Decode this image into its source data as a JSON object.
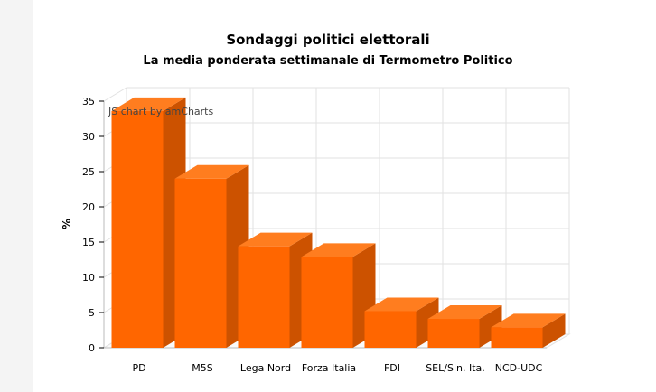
{
  "chart_data": {
    "type": "bar",
    "title": "Sondaggi politici elettorali",
    "subtitle": "La media ponderata settimanale di Termometro Politico",
    "ylabel": "%",
    "xlabel": "",
    "credit": "JS chart by amCharts",
    "ylim": [
      0,
      35
    ],
    "yticks": [
      0,
      5,
      10,
      15,
      20,
      25,
      30,
      35
    ],
    "categories": [
      "PD",
      "M5S",
      "Lega Nord",
      "Forza Italia",
      "FDI",
      "SEL/Sin. Ita.",
      "NCD-UDC"
    ],
    "values": [
      33.6,
      24.0,
      14.4,
      12.9,
      5.2,
      4.1,
      2.9
    ],
    "colors": {
      "front": "#ff6600",
      "side": "#cc5200",
      "top": "#ff7d1f",
      "grid": "#e2e2e2"
    },
    "grid": true,
    "legend": "none"
  }
}
